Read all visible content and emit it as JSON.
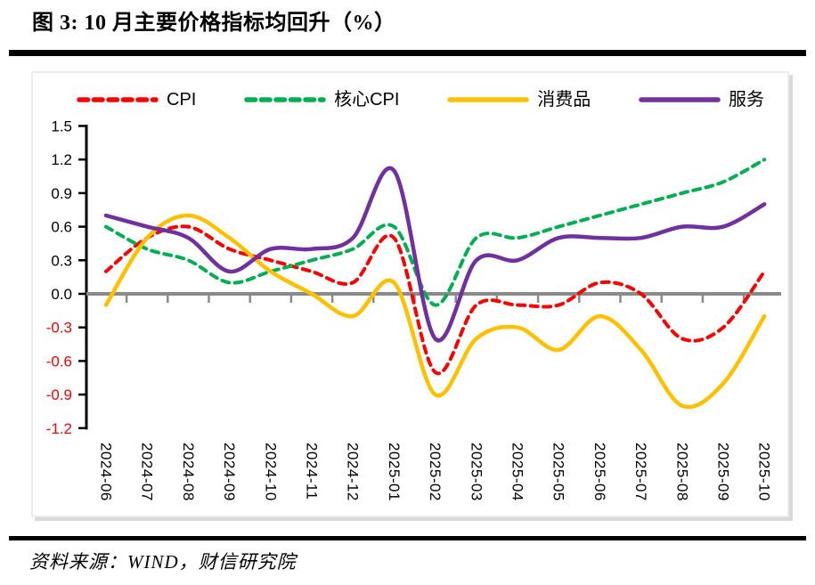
{
  "title": "图 3:  10 月主要价格指标均回升（%）",
  "source": "资料来源：WIND，财信研究院",
  "chart_data": {
    "type": "line",
    "title": "图 3: 10 月主要价格指标均回升（%）",
    "unit": "%",
    "x": [
      "2024-06",
      "2024-07",
      "2024-08",
      "2024-09",
      "2024-10",
      "2024-11",
      "2024-12",
      "2025-01",
      "2025-02",
      "2025-03",
      "2025-04",
      "2025-05",
      "2025-06",
      "2025-07",
      "2025-08",
      "2025-09",
      "2025-10"
    ],
    "series": [
      {
        "name": "CPI",
        "color": "#FF0000",
        "dashed": true,
        "values": [
          0.2,
          0.5,
          0.6,
          0.4,
          0.3,
          0.2,
          0.1,
          0.5,
          -0.7,
          -0.1,
          -0.1,
          -0.1,
          0.1,
          0.0,
          -0.4,
          -0.3,
          0.2
        ]
      },
      {
        "name": "核心CPI",
        "color": "#00B050",
        "dashed": true,
        "values": [
          0.6,
          0.4,
          0.3,
          0.1,
          0.2,
          0.3,
          0.4,
          0.6,
          -0.1,
          0.5,
          0.5,
          0.6,
          0.7,
          0.8,
          0.9,
          1.0,
          1.2
        ]
      },
      {
        "name": "消费品",
        "color": "#FFC000",
        "dashed": false,
        "values": [
          -0.1,
          0.5,
          0.7,
          0.5,
          0.2,
          0.0,
          -0.2,
          0.1,
          -0.9,
          -0.4,
          -0.3,
          -0.5,
          -0.2,
          -0.5,
          -1.0,
          -0.8,
          -0.2
        ]
      },
      {
        "name": "服务",
        "color": "#7030A0",
        "dashed": false,
        "values": [
          0.7,
          0.6,
          0.5,
          0.2,
          0.4,
          0.4,
          0.5,
          1.1,
          -0.4,
          0.3,
          0.3,
          0.5,
          0.5,
          0.5,
          0.6,
          0.6,
          0.8
        ]
      }
    ],
    "ylim": [
      -1.2,
      1.5
    ],
    "ytick_step": 0.3,
    "ytick_positive_color": "#000000",
    "ytick_negative_color": "#FF0000",
    "zero_line_color": "#8A8A8A",
    "axis_color": "#000000",
    "legend_position": "top",
    "grid": false,
    "smoothed_lines": true
  }
}
